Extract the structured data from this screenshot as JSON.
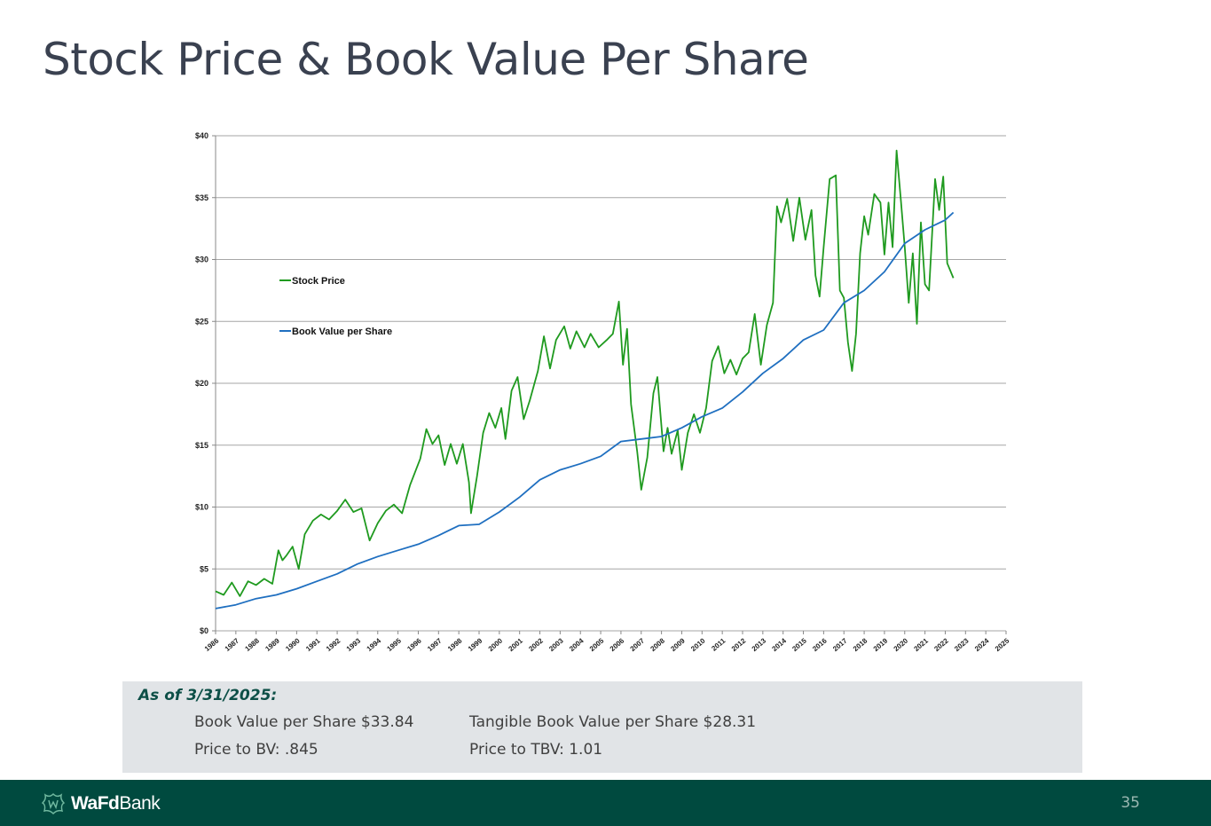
{
  "title": "Stock Price & Book Value Per Share",
  "colors": {
    "stock": "#1f9a1f",
    "book": "#1f6fc0",
    "footer": "#004a3f",
    "accent": "#0d4f47"
  },
  "chart_data": {
    "type": "line",
    "title": "",
    "xlabel": "",
    "ylabel": "",
    "x_ticks": [
      "1986",
      "1987",
      "1988",
      "1989",
      "1990",
      "1991",
      "1992",
      "1993",
      "1994",
      "1995",
      "1996",
      "1997",
      "1998",
      "1999",
      "2000",
      "2001",
      "2002",
      "2003",
      "2004",
      "2005",
      "2006",
      "2007",
      "2008",
      "2009",
      "2010",
      "2011",
      "2012",
      "2013",
      "2014",
      "2015",
      "2016",
      "2017",
      "2018",
      "2019",
      "2020",
      "2021",
      "2022",
      "2023",
      "2024",
      "2025"
    ],
    "y_ticks": [
      "$0",
      "$5",
      "$10",
      "$15",
      "$20",
      "$25",
      "$30",
      "$35",
      "$40"
    ],
    "xlim": [
      1986,
      2025
    ],
    "ylim": [
      0,
      40
    ],
    "grid": true,
    "legend_position": "upper-left",
    "series": [
      {
        "name": "Stock Price",
        "color": "#1f9a1f",
        "points": [
          [
            1986,
            3.2
          ],
          [
            1986.4,
            2.9
          ],
          [
            1986.8,
            3.9
          ],
          [
            1987.2,
            2.8
          ],
          [
            1987.6,
            4.0
          ],
          [
            1988,
            3.7
          ],
          [
            1988.4,
            4.2
          ],
          [
            1988.8,
            3.8
          ],
          [
            1989.1,
            6.5
          ],
          [
            1989.3,
            5.7
          ],
          [
            1989.5,
            6.1
          ],
          [
            1989.8,
            6.8
          ],
          [
            1990.1,
            5.0
          ],
          [
            1990.4,
            7.8
          ],
          [
            1990.8,
            8.9
          ],
          [
            1991.2,
            9.4
          ],
          [
            1991.6,
            9.0
          ],
          [
            1992,
            9.7
          ],
          [
            1992.4,
            10.6
          ],
          [
            1992.8,
            9.6
          ],
          [
            1993.2,
            9.9
          ],
          [
            1993.6,
            7.3
          ],
          [
            1994,
            8.7
          ],
          [
            1994.4,
            9.7
          ],
          [
            1994.8,
            10.2
          ],
          [
            1995.2,
            9.5
          ],
          [
            1995.6,
            11.8
          ],
          [
            1996.1,
            13.9
          ],
          [
            1996.4,
            16.3
          ],
          [
            1996.7,
            15.1
          ],
          [
            1997,
            15.8
          ],
          [
            1997.3,
            13.4
          ],
          [
            1997.6,
            15.1
          ],
          [
            1997.9,
            13.5
          ],
          [
            1998.2,
            15.1
          ],
          [
            1998.5,
            12.0
          ],
          [
            1998.6,
            9.5
          ],
          [
            1998.9,
            12.5
          ],
          [
            1999.2,
            16.0
          ],
          [
            1999.5,
            17.6
          ],
          [
            1999.8,
            16.4
          ],
          [
            2000.1,
            18.0
          ],
          [
            2000.3,
            15.5
          ],
          [
            2000.6,
            19.4
          ],
          [
            2000.9,
            20.5
          ],
          [
            2001.2,
            17.1
          ],
          [
            2001.5,
            18.6
          ],
          [
            2001.9,
            21.0
          ],
          [
            2002.2,
            23.8
          ],
          [
            2002.5,
            21.2
          ],
          [
            2002.8,
            23.5
          ],
          [
            2003.2,
            24.6
          ],
          [
            2003.5,
            22.8
          ],
          [
            2003.8,
            24.2
          ],
          [
            2004.2,
            22.9
          ],
          [
            2004.5,
            24.0
          ],
          [
            2004.9,
            22.9
          ],
          [
            2005.3,
            23.5
          ],
          [
            2005.6,
            24.0
          ],
          [
            2005.9,
            26.6
          ],
          [
            2006.1,
            21.5
          ],
          [
            2006.3,
            24.4
          ],
          [
            2006.5,
            18.3
          ],
          [
            2006.8,
            14.5
          ],
          [
            2007,
            11.4
          ],
          [
            2007.3,
            14.0
          ],
          [
            2007.6,
            19.2
          ],
          [
            2007.8,
            20.5
          ],
          [
            2008.1,
            14.5
          ],
          [
            2008.3,
            16.4
          ],
          [
            2008.5,
            14.3
          ],
          [
            2008.8,
            16.2
          ],
          [
            2009,
            13.0
          ],
          [
            2009.3,
            16.0
          ],
          [
            2009.6,
            17.5
          ],
          [
            2009.9,
            16.0
          ],
          [
            2010.2,
            18.0
          ],
          [
            2010.5,
            21.8
          ],
          [
            2010.8,
            23.0
          ],
          [
            2011.1,
            20.8
          ],
          [
            2011.4,
            21.9
          ],
          [
            2011.7,
            20.7
          ],
          [
            2012,
            22.0
          ],
          [
            2012.3,
            22.5
          ],
          [
            2012.6,
            25.6
          ],
          [
            2012.9,
            21.5
          ],
          [
            2013.2,
            24.7
          ],
          [
            2013.5,
            26.5
          ],
          [
            2013.7,
            34.3
          ],
          [
            2013.9,
            33.0
          ],
          [
            2014.2,
            34.9
          ],
          [
            2014.5,
            31.5
          ],
          [
            2014.8,
            35.0
          ],
          [
            2015.1,
            31.6
          ],
          [
            2015.4,
            34.0
          ],
          [
            2015.6,
            28.7
          ],
          [
            2015.8,
            27.0
          ],
          [
            2016.0,
            31.0
          ],
          [
            2016.3,
            36.5
          ],
          [
            2016.6,
            36.8
          ],
          [
            2016.8,
            27.5
          ],
          [
            2017.0,
            26.9
          ],
          [
            2017.2,
            23.3
          ],
          [
            2017.4,
            21.0
          ],
          [
            2017.6,
            24.0
          ],
          [
            2017.8,
            30.5
          ],
          [
            2018.0,
            33.5
          ],
          [
            2018.2,
            32.0
          ],
          [
            2018.5,
            35.3
          ],
          [
            2018.8,
            34.6
          ],
          [
            2019.0,
            30.4
          ],
          [
            2019.2,
            34.6
          ],
          [
            2019.4,
            31.0
          ],
          [
            2019.6,
            38.8
          ],
          [
            2019.8,
            35.0
          ],
          [
            2020.0,
            31.0
          ],
          [
            2020.2,
            26.5
          ],
          [
            2020.4,
            30.5
          ],
          [
            2020.6,
            24.8
          ],
          [
            2020.8,
            33.0
          ],
          [
            2021.0,
            28.0
          ],
          [
            2021.2,
            27.5
          ],
          [
            2021.5,
            36.5
          ],
          [
            2021.7,
            34.0
          ],
          [
            2021.9,
            36.7
          ],
          [
            2022.1,
            29.7
          ],
          [
            2022.4,
            28.5
          ]
        ]
      },
      {
        "name": "Book Value per Share",
        "color": "#1f6fc0",
        "points": [
          [
            1986,
            1.8
          ],
          [
            1987,
            2.1
          ],
          [
            1988,
            2.6
          ],
          [
            1989,
            2.9
          ],
          [
            1990,
            3.4
          ],
          [
            1991,
            4.0
          ],
          [
            1992,
            4.6
          ],
          [
            1993,
            5.4
          ],
          [
            1994,
            6.0
          ],
          [
            1995,
            6.5
          ],
          [
            1996,
            7.0
          ],
          [
            1997,
            7.7
          ],
          [
            1998,
            8.5
          ],
          [
            1999,
            8.6
          ],
          [
            2000,
            9.6
          ],
          [
            2001,
            10.8
          ],
          [
            2002,
            12.2
          ],
          [
            2003,
            13.0
          ],
          [
            2004,
            13.5
          ],
          [
            2005,
            14.1
          ],
          [
            2006,
            15.3
          ],
          [
            2007,
            15.5
          ],
          [
            2008,
            15.7
          ],
          [
            2009,
            16.4
          ],
          [
            2010,
            17.3
          ],
          [
            2011,
            18.0
          ],
          [
            2012,
            19.3
          ],
          [
            2013,
            20.8
          ],
          [
            2014,
            22.0
          ],
          [
            2015,
            23.5
          ],
          [
            2016,
            24.3
          ],
          [
            2017,
            26.5
          ],
          [
            2018,
            27.5
          ],
          [
            2019,
            29.0
          ],
          [
            2020,
            31.3
          ],
          [
            2021,
            32.4
          ],
          [
            2022,
            33.2
          ],
          [
            2022.4,
            33.8
          ]
        ]
      }
    ]
  },
  "summary": {
    "heading": "As of 3/31/2025:",
    "bvps": "Book Value per Share $33.84",
    "tbvps": "Tangible Book Value per Share $28.31",
    "p_bv": "Price to BV:  .845",
    "p_tbv": "Price to TBV:  1.01"
  },
  "footer": {
    "logo_bold": "WaFd",
    "logo_regular": "Bank",
    "page_number": "35"
  }
}
